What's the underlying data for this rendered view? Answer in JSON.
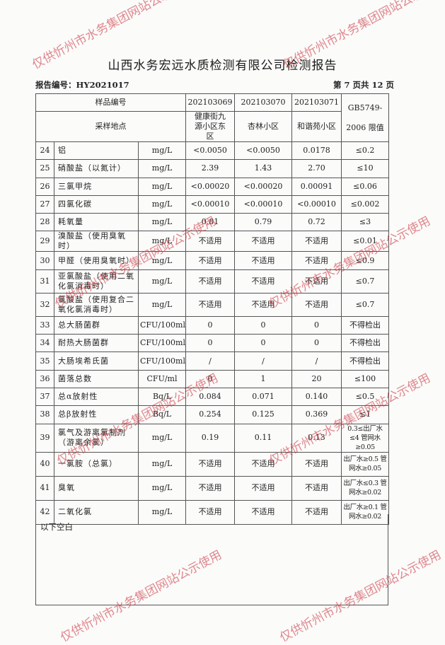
{
  "title": "山西水务宏远水质检测有限公司检测报告",
  "report_no": "报告编号：HY2021017",
  "page_info": "第 7 页共 12 页",
  "header": {
    "sample_no_label": "样品编号",
    "site_label": "采样地点",
    "samples": [
      "202103069",
      "202103070",
      "202103071"
    ],
    "sites": [
      "健康街九源小区东区",
      "杏林小区",
      "和谐苑小区"
    ],
    "standard": "GB5749-2006 限值"
  },
  "rows": [
    {
      "no": "24",
      "item": "铝",
      "unit": "mg/L",
      "v": [
        "<0.0050",
        "<0.0050",
        "0.0178"
      ],
      "limit": "≤0.2"
    },
    {
      "no": "25",
      "item": "硝酸盐（以氮计）",
      "unit": "mg/L",
      "v": [
        "2.39",
        "1.43",
        "2.70"
      ],
      "limit": "≤10"
    },
    {
      "no": "26",
      "item": "三氯甲烷",
      "unit": "mg/L",
      "v": [
        "<0.00020",
        "<0.00020",
        "0.00091"
      ],
      "limit": "≤0.06"
    },
    {
      "no": "27",
      "item": "四氯化碳",
      "unit": "mg/L",
      "v": [
        "<0.00010",
        "<0.00010",
        "<0.00010"
      ],
      "limit": "≤0.002"
    },
    {
      "no": "28",
      "item": "耗氧量",
      "unit": "mg/L",
      "v": [
        "0.81",
        "0.79",
        "0.72"
      ],
      "limit": "≤3"
    },
    {
      "no": "29",
      "item": "溴酸盐（使用臭氧时）",
      "unit": "mg/L",
      "v": [
        "不适用",
        "不适用",
        "不适用"
      ],
      "limit": "≤0.01"
    },
    {
      "no": "30",
      "item": "甲醛（使用臭氧时）",
      "unit": "mg/L",
      "v": [
        "不适用",
        "不适用",
        "不适用"
      ],
      "limit": "≤0.9"
    },
    {
      "no": "31",
      "item": "亚氯酸盐（使用二氧化氯消毒时）",
      "unit": "mg/L",
      "v": [
        "不适用",
        "不适用",
        "不适用"
      ],
      "limit": "≤0.7"
    },
    {
      "no": "32",
      "item": "氯酸盐（使用复合二氧化氯消毒时）",
      "unit": "mg/L",
      "v": [
        "不适用",
        "不适用",
        "不适用"
      ],
      "limit": "≤0.7"
    },
    {
      "no": "33",
      "item": "总大肠菌群",
      "unit": "CFU/100ml",
      "v": [
        "0",
        "0",
        "0"
      ],
      "limit": "不得检出"
    },
    {
      "no": "34",
      "item": "耐热大肠菌群",
      "unit": "CFU/100ml",
      "v": [
        "0",
        "0",
        "0"
      ],
      "limit": "不得检出"
    },
    {
      "no": "35",
      "item": "大肠埃希氏菌",
      "unit": "CFU/100ml",
      "v": [
        "/",
        "/",
        "/"
      ],
      "limit": "不得检出"
    },
    {
      "no": "36",
      "item": "菌落总数",
      "unit": "CFU/ml",
      "v": [
        "0",
        "1",
        "20"
      ],
      "limit": "≤100"
    },
    {
      "no": "37",
      "item": "总α放射性",
      "unit": "Bq/L",
      "v": [
        "0.084",
        "0.071",
        "0.140"
      ],
      "limit": "≤0.5"
    },
    {
      "no": "38",
      "item": "总β放射性",
      "unit": "Bq/L",
      "v": [
        "0.254",
        "0.125",
        "0.369"
      ],
      "limit": "≤1"
    },
    {
      "no": "39",
      "item": "氯气及游离氯制剂（游离余氯）",
      "unit": "mg/L",
      "v": [
        "0.19",
        "0.11",
        "0.13"
      ],
      "limit": "0.3≤出厂水≤4 管网水≥0.05"
    },
    {
      "no": "40",
      "item": "一氯胺（总氯）",
      "unit": "mg/L",
      "v": [
        "不适用",
        "不适用",
        "不适用"
      ],
      "limit": "出厂水≥0.5 管网水≥0.05"
    },
    {
      "no": "41",
      "item": "臭氧",
      "unit": "mg/L",
      "v": [
        "不适用",
        "不适用",
        "不适用"
      ],
      "limit": "出厂水≤0.3 管网水≥0.02"
    },
    {
      "no": "42",
      "item": "二氧化氯",
      "unit": "mg/L",
      "v": [
        "不适用",
        "不适用",
        "不适用"
      ],
      "limit": "出厂水≥0.1 管网水≥0.02"
    }
  ],
  "footer_note": "以下空白",
  "watermark": "仅供忻州市水务集团网站公示使用",
  "watermark_color": "#c82832"
}
